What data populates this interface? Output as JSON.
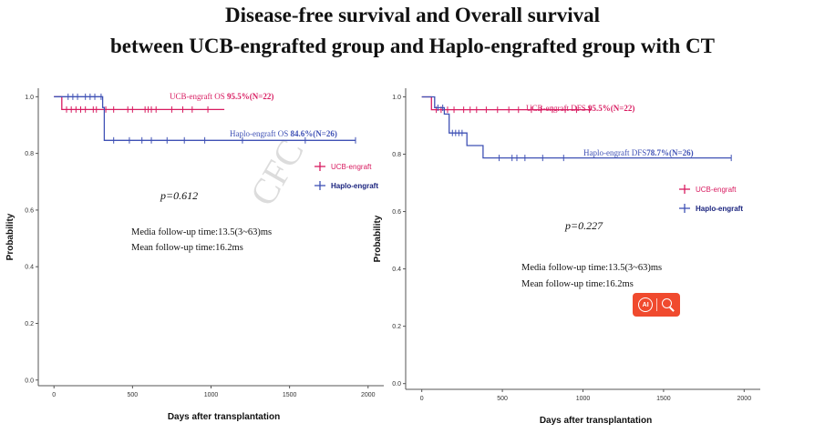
{
  "title": {
    "line1": "Disease-free survival  and  Overall survival",
    "line2": "between UCB-engrafted group and Haplo-engrafted group  with CT"
  },
  "watermark": "CFC",
  "colors": {
    "ucb": "#d81b60",
    "haplo": "#3f51b5",
    "badge": "#f04a2e"
  },
  "badge": {
    "label": "AI",
    "icons": [
      "ai-circle-icon",
      "search-icon"
    ]
  },
  "chart_data": [
    {
      "type": "line",
      "subtype": "kaplan-meier",
      "xlabel": "Days after transplantation",
      "ylabel": "Probability",
      "xlim": [
        -100,
        2100
      ],
      "ylim": [
        -0.02,
        1.03
      ],
      "xticks": [
        "0",
        "500",
        "1000",
        "1500",
        "2000"
      ],
      "yticks": [
        "0.0",
        "0.2",
        "0.4",
        "0.6",
        "0.8",
        "1.0"
      ],
      "grid": false,
      "legend": {
        "position": "right",
        "entries": [
          "UCB-engraft",
          "Haplo-engraft"
        ]
      },
      "annotations": {
        "p_value": "p=0.612",
        "median_followup": "Media follow-up time:13.5(3~63)ms",
        "mean_followup": "Mean follow-up time:16.2ms"
      },
      "series": [
        {
          "name": "UCB-engraft",
          "label_prefix": "UCB-engraft OS ",
          "label_bold": "95.5%(N=22)",
          "color_key": "ucb",
          "steps": [
            [
              0,
              1.0
            ],
            [
              50,
              1.0
            ],
            [
              50,
              0.955
            ],
            [
              1085,
              0.955
            ]
          ],
          "censors": [
            80,
            110,
            140,
            170,
            200,
            250,
            270,
            330,
            380,
            470,
            500,
            580,
            600,
            620,
            650,
            750,
            820,
            880,
            980
          ]
        },
        {
          "name": "Haplo-engraft",
          "label_prefix": "Haplo-engraft OS ",
          "label_bold": "84.6%(N=26)",
          "color_key": "haplo",
          "steps": [
            [
              0,
              1.0
            ],
            [
              310,
              1.0
            ],
            [
              310,
              0.962
            ],
            [
              320,
              0.962
            ],
            [
              320,
              0.846
            ],
            [
              1920,
              0.846
            ]
          ],
          "censors": [
            90,
            120,
            150,
            200,
            230,
            260,
            300,
            380,
            480,
            560,
            620,
            720,
            830,
            960,
            1200,
            1600,
            1920
          ]
        }
      ]
    },
    {
      "type": "line",
      "subtype": "kaplan-meier",
      "xlabel": "Days after transplantation",
      "ylabel": "Probability",
      "xlim": [
        -100,
        2100
      ],
      "ylim": [
        -0.02,
        1.03
      ],
      "xticks": [
        "0",
        "500",
        "1000",
        "1500",
        "2000"
      ],
      "yticks": [
        "0.0",
        "0.2",
        "0.4",
        "0.6",
        "0.8",
        "1.0"
      ],
      "grid": false,
      "legend": {
        "position": "right",
        "entries": [
          "UCB-engraft",
          "Haplo-engraft"
        ]
      },
      "annotations": {
        "p_value": "p=0.227",
        "median_followup": "Media follow-up time:13.5(3~63)ms",
        "mean_followup": "Mean follow-up time:16.2ms"
      },
      "series": [
        {
          "name": "UCB-engraft",
          "label_prefix": "UCB-engraft DFS ",
          "label_bold": "95.5%(N=22)",
          "color_key": "ucb",
          "steps": [
            [
              0,
              1.0
            ],
            [
              60,
              1.0
            ],
            [
              60,
              0.955
            ],
            [
              1055,
              0.955
            ]
          ],
          "censors": [
            90,
            120,
            160,
            200,
            260,
            300,
            340,
            400,
            470,
            540,
            600,
            680,
            740,
            810,
            890,
            960,
            1040
          ]
        },
        {
          "name": "Haplo-engraft",
          "label_prefix": "Haplo-engraft DFS",
          "label_bold": "78.7%(N=26)",
          "color_key": "haplo",
          "steps": [
            [
              0,
              1.0
            ],
            [
              80,
              1.0
            ],
            [
              80,
              0.962
            ],
            [
              140,
              0.962
            ],
            [
              140,
              0.94
            ],
            [
              170,
              0.94
            ],
            [
              170,
              0.874
            ],
            [
              280,
              0.874
            ],
            [
              280,
              0.83
            ],
            [
              380,
              0.83
            ],
            [
              380,
              0.787
            ],
            [
              1920,
              0.787
            ]
          ],
          "censors": [
            100,
            130,
            190,
            210,
            230,
            250,
            480,
            560,
            590,
            640,
            750,
            880,
            1920
          ]
        }
      ]
    }
  ]
}
